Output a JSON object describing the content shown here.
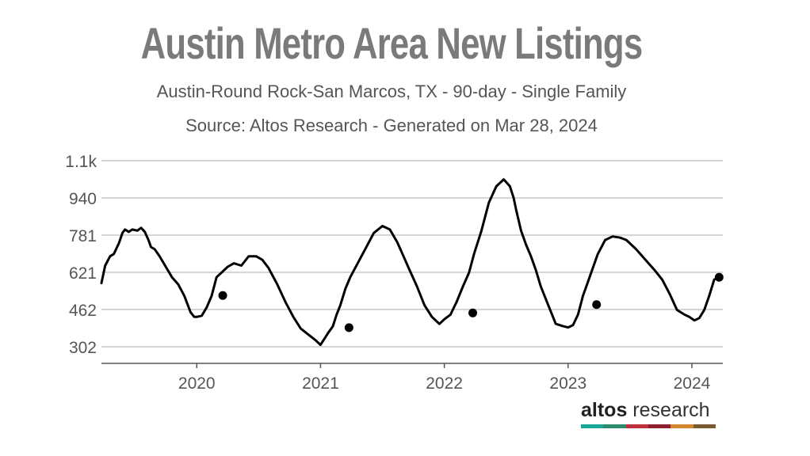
{
  "header": {
    "title": "Austin Metro Area New Listings",
    "subtitle": "Austin-Round Rock-San Marcos, TX - 90-day - Single Family",
    "source": "Source: Altos Research - Generated on Mar 28, 2024"
  },
  "logo": {
    "brand": "altos",
    "suffix": " research",
    "colors": [
      "#1aa89a",
      "#2e8b6e",
      "#c0303c",
      "#8e1f2e",
      "#d4862e",
      "#7a5a2e"
    ]
  },
  "chart_data": {
    "type": "line",
    "title": "Austin Metro Area New Listings",
    "xlabel": "",
    "ylabel": "",
    "ylim": [
      230,
      1100
    ],
    "y_ticks": [
      {
        "value": 302,
        "label": "302"
      },
      {
        "value": 462,
        "label": "462"
      },
      {
        "value": 621,
        "label": "621"
      },
      {
        "value": 781,
        "label": "781"
      },
      {
        "value": 940,
        "label": "940"
      },
      {
        "value": 1100,
        "label": "1.1k"
      }
    ],
    "x_ticks": [
      {
        "value": 2020.0,
        "label": "2020"
      },
      {
        "value": 2021.0,
        "label": "2021"
      },
      {
        "value": 2022.0,
        "label": "2022"
      },
      {
        "value": 2023.0,
        "label": "2023"
      },
      {
        "value": 2024.0,
        "label": "2024"
      }
    ],
    "xlim": [
      2019.23,
      2024.25
    ],
    "grid": "horizontal",
    "line_color": "#000000",
    "series": [
      {
        "x": [
          2019.23,
          2019.26,
          2019.3,
          2019.33,
          2019.37,
          2019.4,
          2019.42,
          2019.45,
          2019.48,
          2019.52,
          2019.55,
          2019.58,
          2019.61,
          2019.63,
          2019.66,
          2019.7,
          2019.75,
          2019.8,
          2019.85,
          2019.9,
          2019.95,
          2019.98,
          2020.0,
          2020.04,
          2020.08,
          2020.12,
          2020.16,
          2020.2,
          2020.25,
          2020.3,
          2020.36,
          2020.42,
          2020.48,
          2020.53,
          2020.58,
          2020.65,
          2020.72,
          2020.78,
          2020.84,
          2020.9,
          2020.96,
          2021.0,
          2021.06,
          2021.1,
          2021.13,
          2021.16,
          2021.2,
          2021.24,
          2021.3,
          2021.36,
          2021.43,
          2021.5,
          2021.56,
          2021.62,
          2021.67,
          2021.72,
          2021.78,
          2021.84,
          2021.9,
          2021.96,
          2022.0,
          2022.05,
          2022.1,
          2022.15,
          2022.2,
          2022.24,
          2022.3,
          2022.36,
          2022.42,
          2022.48,
          2022.53,
          2022.56,
          2022.58,
          2022.62,
          2022.66,
          2022.7,
          2022.74,
          2022.78,
          2022.84,
          2022.9,
          2022.96,
          2023.0,
          2023.04,
          2023.08,
          2023.12,
          2023.16,
          2023.2,
          2023.24,
          2023.3,
          2023.36,
          2023.42,
          2023.47,
          2023.5,
          2023.55,
          2023.6,
          2023.65,
          2023.7,
          2023.76,
          2023.82,
          2023.88,
          2023.94,
          2023.98,
          2024.02,
          2024.06,
          2024.1,
          2024.14,
          2024.18,
          2024.22
        ],
        "y": [
          575,
          650,
          690,
          700,
          745,
          790,
          805,
          795,
          805,
          800,
          812,
          795,
          760,
          730,
          720,
          690,
          645,
          600,
          570,
          520,
          450,
          430,
          430,
          435,
          470,
          520,
          600,
          620,
          645,
          660,
          650,
          690,
          690,
          675,
          640,
          570,
          490,
          430,
          380,
          355,
          330,
          310,
          360,
          390,
          440,
          480,
          550,
          600,
          660,
          720,
          790,
          820,
          805,
          750,
          690,
          630,
          560,
          480,
          430,
          400,
          420,
          440,
          495,
          560,
          620,
          700,
          800,
          920,
          990,
          1020,
          990,
          940,
          890,
          800,
          740,
          690,
          630,
          560,
          480,
          400,
          390,
          385,
          395,
          440,
          520,
          580,
          640,
          700,
          760,
          775,
          770,
          760,
          745,
          720,
          690,
          660,
          630,
          590,
          530,
          460,
          440,
          430,
          415,
          425,
          460,
          520,
          590,
          600
        ]
      }
    ],
    "markers": [
      {
        "x": 2020.21,
        "y": 522
      },
      {
        "x": 2021.23,
        "y": 384
      },
      {
        "x": 2022.23,
        "y": 447
      },
      {
        "x": 2023.23,
        "y": 483
      },
      {
        "x": 2024.22,
        "y": 600
      }
    ]
  }
}
